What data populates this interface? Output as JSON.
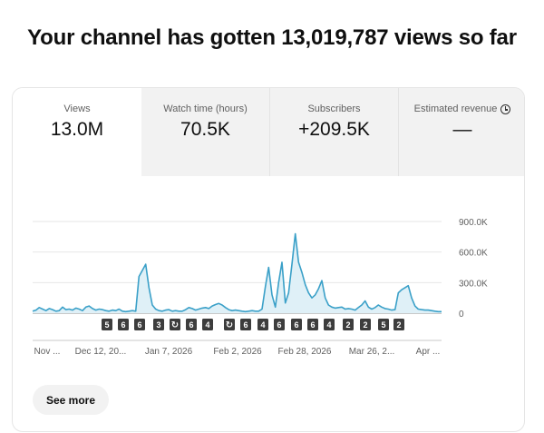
{
  "headline": "Your channel has gotten 13,019,787 views so far",
  "tabs": [
    {
      "label": "Views",
      "value": "13.0M",
      "active": true
    },
    {
      "label": "Watch time (hours)",
      "value": "70.5K",
      "active": false
    },
    {
      "label": "Subscribers",
      "value": "+209.5K",
      "active": false
    },
    {
      "label": "Estimated revenue",
      "value": "—",
      "active": false,
      "icon": "info-icon"
    }
  ],
  "chart_data": {
    "type": "area",
    "title": "",
    "xlabel": "",
    "ylabel": "",
    "ylim": [
      0,
      900000
    ],
    "y_ticks": [
      "900.0K",
      "600.0K",
      "300.0K",
      "0"
    ],
    "y_tick_values": [
      900000,
      600000,
      300000,
      0
    ],
    "x_tick_labels": [
      "Nov ...",
      "Dec 12, 20...",
      "Jan 7, 2026",
      "Feb 2, 2026",
      "Feb 28, 2026",
      "Mar 26, 2...",
      "Apr ..."
    ],
    "grid": true,
    "color": "#3aa0c8",
    "fill_color": "#dff0f7",
    "series": [
      {
        "values": [
          20000,
          30000,
          55000,
          40000,
          25000,
          45000,
          35000,
          20000,
          25000,
          60000,
          35000,
          40000,
          30000,
          50000,
          40000,
          25000,
          60000,
          70000,
          45000,
          30000,
          40000,
          35000,
          25000,
          20000,
          30000,
          25000,
          40000,
          20000,
          15000,
          20000,
          25000,
          20000,
          360000,
          420000,
          480000,
          250000,
          80000,
          40000,
          25000,
          20000,
          30000,
          35000,
          20000,
          25000,
          20000,
          20000,
          35000,
          55000,
          45000,
          30000,
          40000,
          50000,
          55000,
          45000,
          70000,
          85000,
          95000,
          80000,
          55000,
          35000,
          25000,
          30000,
          25000,
          20000,
          15000,
          20000,
          25000,
          20000,
          20000,
          40000,
          260000,
          450000,
          180000,
          60000,
          300000,
          500000,
          100000,
          200000,
          480000,
          780000,
          500000,
          400000,
          280000,
          200000,
          150000,
          180000,
          240000,
          320000,
          150000,
          80000,
          60000,
          50000,
          55000,
          60000,
          40000,
          45000,
          40000,
          30000,
          55000,
          80000,
          120000,
          60000,
          40000,
          55000,
          80000,
          60000,
          45000,
          40000,
          30000,
          35000,
          200000,
          230000,
          250000,
          270000,
          150000,
          70000,
          40000,
          35000,
          30000,
          30000,
          25000,
          20000,
          15000,
          15000
        ]
      }
    ],
    "markers": [
      "5",
      "6",
      "6",
      "3",
      "short",
      "6",
      "4",
      "short",
      "6",
      "4",
      "6",
      "6",
      "6",
      "4",
      "2",
      "2",
      "5",
      "2"
    ]
  },
  "see_more_label": "See more"
}
